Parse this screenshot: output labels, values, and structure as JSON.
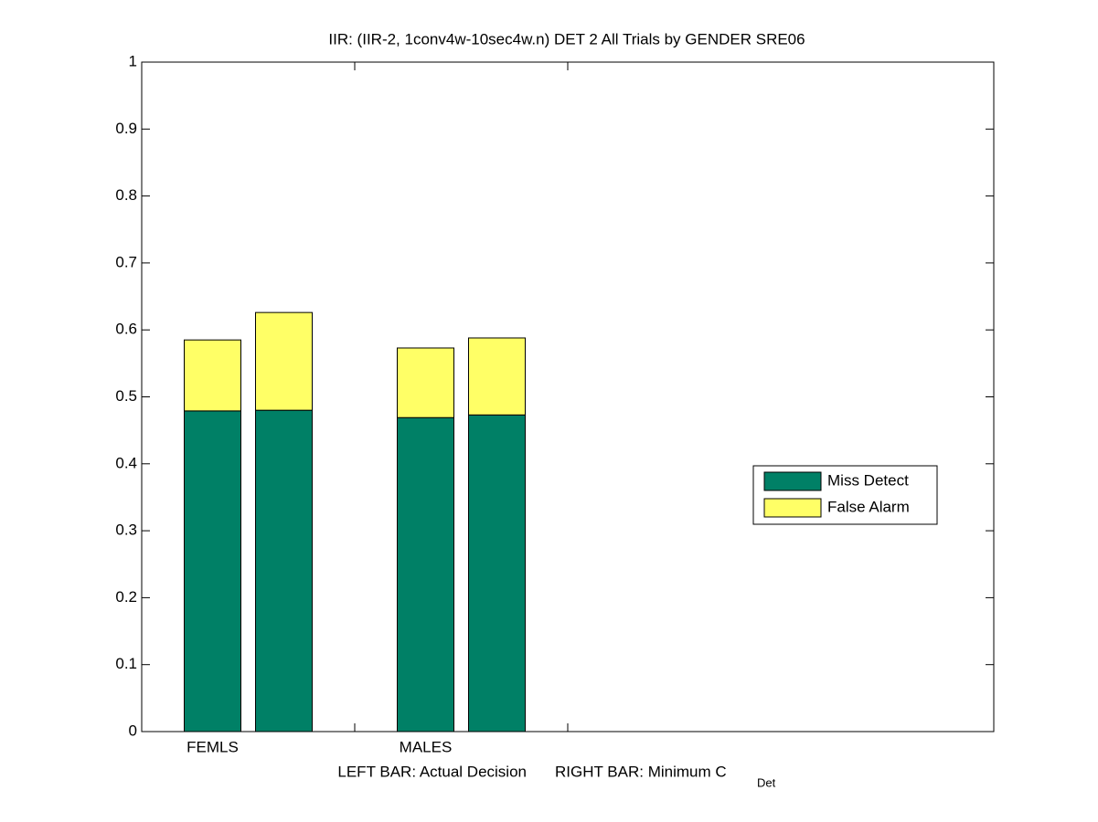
{
  "chart_data": {
    "type": "stacked_bar",
    "title": "IIR: (IIR-2, 1conv4w-10sec4w.n) DET 2 All Trials by GENDER SRE06",
    "xlabel": {
      "left": "LEFT BAR: Actual Decision",
      "right": "RIGHT BAR: Minimum C",
      "subscript": "Det"
    },
    "categories": [
      "FEMLS",
      null,
      "MALES",
      null
    ],
    "series": [
      {
        "name": "Miss Detect",
        "color": "#008066",
        "values": [
          0.479,
          0.48,
          0.469,
          0.473
        ]
      },
      {
        "name": "False Alarm",
        "color": "#ffff66",
        "values": [
          0.106,
          0.146,
          0.104,
          0.115
        ]
      }
    ],
    "ylim": [
      0,
      1
    ],
    "yticks": [
      0,
      0.1,
      0.2,
      0.3,
      0.4,
      0.5,
      0.6,
      0.7,
      0.8,
      0.9,
      1
    ],
    "grid": false,
    "legend": "right"
  }
}
